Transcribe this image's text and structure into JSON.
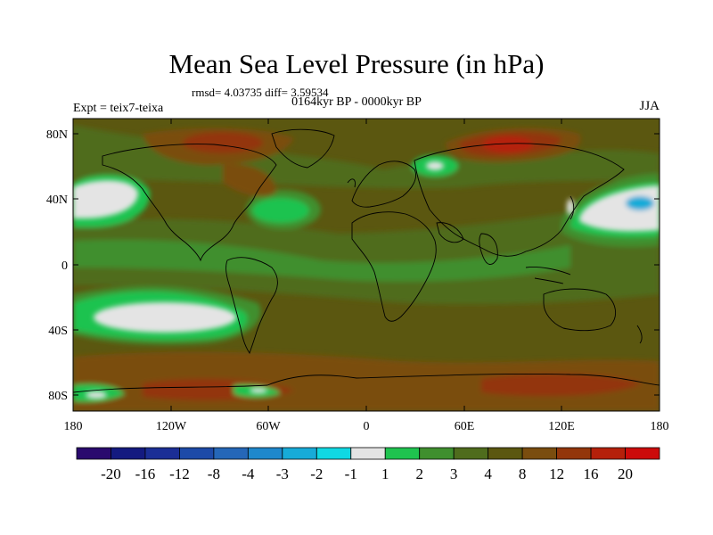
{
  "title": "Mean Sea Level Pressure (in hPa)",
  "stats": "rmsd= 4.03735  diff= 3.59534",
  "subtitle": "0164kyr BP - 0000kyr BP",
  "left_label": "Expt = teix7-teixa",
  "season": "JJA",
  "lat_ticks": [
    "80N",
    "40N",
    "0",
    "40S",
    "80S"
  ],
  "lon_ticks": [
    "180",
    "120W",
    "60W",
    "0",
    "60E",
    "120E",
    "180"
  ],
  "colorbar": {
    "colors": [
      "#2a0a6e",
      "#141a80",
      "#1b2e96",
      "#1d4aa8",
      "#2567b8",
      "#1e88cc",
      "#17abd8",
      "#10d8e3",
      "#e4e4e4",
      "#1fc34f",
      "#3f8f2e",
      "#4f6c1d",
      "#5b5710",
      "#7a4d0f",
      "#93360b",
      "#b5200b",
      "#cc0b0b"
    ],
    "labels": [
      "-20",
      "-16",
      "-12",
      "-8",
      "-4",
      "-3",
      "-2",
      "-1",
      "1",
      "2",
      "3",
      "4",
      "8",
      "12",
      "16",
      "20"
    ]
  }
}
